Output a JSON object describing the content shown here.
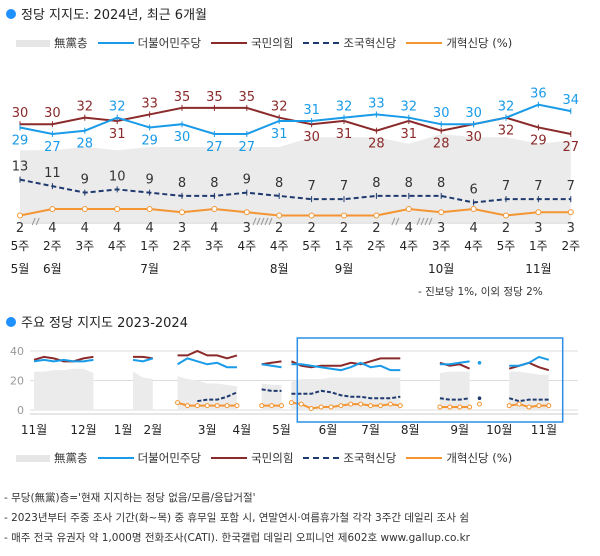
{
  "top": {
    "title": "정당 지지도: 2024년, 최근 6개월",
    "note": "- 진보당 1%, 이외 정당 2%"
  },
  "legend": {
    "nonpartisan": "無黨층",
    "dem": "더불어민주당",
    "ppp": "국민의힘",
    "rebuild": "조국혁신당",
    "reform": "개혁신당 (%)"
  },
  "bottom": {
    "title": "주요 정당 지지도 2023-2024"
  },
  "footnotes": [
    "- 무당(無黨)층='현재 지지하는 정당 없음/모름/응답거절'",
    "- 2023년부터 주중 조사 기간(화~목) 중 휴무일 포함 시, 연말연시·여름휴가철 각각 3주간 데일리 조사 쉼",
    "- 매주 전국 유권자 약 1,000명 전화조사(CATI). 한국갤럽 데일리 오피니언 제602호 www.gallup.co.kr"
  ],
  "colors": {
    "dem": "#1a9be8",
    "ppp": "#8b2a2a",
    "rebuild": "#1f3a6e",
    "reform": "#f39533",
    "nonpartisan": "#ebebeb"
  },
  "chart_data": [
    {
      "type": "line",
      "title": "정당 지지도: 2024년, 최근 6개월",
      "unit": "%",
      "weeks": [
        "5주",
        "2주",
        "3주",
        "4주",
        "1주",
        "2주",
        "3주",
        "4주",
        "4주",
        "5주",
        "1주",
        "2주",
        "4주",
        "3주",
        "4주",
        "5주",
        "1주",
        "2주"
      ],
      "months": [
        {
          "label": "5월",
          "index": 0
        },
        {
          "label": "6월",
          "index": 1
        },
        {
          "label": "7월",
          "index": 4
        },
        {
          "label": "8월",
          "index": 8
        },
        {
          "label": "9월",
          "index": 10
        },
        {
          "label": "10월",
          "index": 13
        },
        {
          "label": "11월",
          "index": 16
        }
      ],
      "series": [
        {
          "name": "더불어민주당",
          "key": "dem",
          "values": [
            29,
            27,
            28,
            32,
            29,
            30,
            27,
            27,
            31,
            31,
            32,
            33,
            32,
            30,
            30,
            32,
            36,
            34
          ]
        },
        {
          "name": "국민의힘",
          "key": "ppp",
          "values": [
            30,
            30,
            32,
            31,
            33,
            35,
            35,
            35,
            32,
            30,
            31,
            28,
            31,
            28,
            30,
            32,
            29,
            27
          ]
        },
        {
          "name": "조국혁신당",
          "key": "rebuild",
          "values": [
            13,
            11,
            9,
            10,
            9,
            8,
            8,
            9,
            8,
            7,
            7,
            8,
            8,
            8,
            6,
            7,
            7,
            7
          ]
        },
        {
          "name": "개혁신당",
          "key": "reform",
          "values": [
            2,
            4,
            4,
            4,
            4,
            3,
            4,
            3,
            2,
            2,
            2,
            2,
            4,
            3,
            4,
            2,
            3,
            3
          ]
        },
        {
          "name": "無黨층",
          "key": "nonpartisan",
          "values": [
            22,
            22,
            23,
            22,
            23,
            23,
            23,
            23,
            23,
            26,
            26,
            26,
            24,
            27,
            26,
            26,
            24,
            25
          ]
        }
      ],
      "ylim": [
        0,
        36
      ]
    },
    {
      "type": "line",
      "title": "주요 정당 지지도 2023-2024",
      "unit": "%",
      "yticks": [
        0,
        20,
        40
      ],
      "ylim": [
        0,
        45
      ],
      "months": [
        {
          "label": "11월",
          "week": 0
        },
        {
          "label": "12월",
          "week": 5
        },
        {
          "label": "1월",
          "week": 9
        },
        {
          "label": "2월",
          "week": 12
        },
        {
          "label": "3월",
          "week": 17.5
        },
        {
          "label": "4월",
          "week": 21
        },
        {
          "label": "5월",
          "week": 25
        },
        {
          "label": "6월",
          "week": 29.7
        },
        {
          "label": "7월",
          "week": 34
        },
        {
          "label": "8월",
          "week": 38
        },
        {
          "label": "9월",
          "week": 43
        },
        {
          "label": "10월",
          "week": 47
        },
        {
          "label": "11월",
          "week": 51.5
        }
      ],
      "segments": [
        {
          "start": 0,
          "dem": [
            33,
            34,
            33,
            34,
            33,
            33,
            34
          ],
          "ppp": [
            34,
            36,
            35,
            33,
            33,
            35,
            36
          ],
          "nonpartisan": [
            26,
            26,
            27,
            27,
            28,
            28,
            25
          ]
        },
        {
          "start": 10,
          "dem": [
            34,
            33,
            35
          ],
          "ppp": [
            36,
            36,
            35
          ],
          "nonpartisan": [
            26,
            22,
            21
          ]
        },
        {
          "start": 14.5,
          "dem": [
            31,
            35,
            33,
            31,
            32,
            29,
            29
          ],
          "ppp": [
            37,
            37,
            40,
            37,
            37,
            35,
            37
          ],
          "nonpartisan": [
            23,
            21,
            20,
            18,
            18,
            17,
            16
          ],
          "rebuild": [
            null,
            null,
            6,
            7,
            7,
            9,
            12
          ],
          "reform": [
            5,
            3,
            3,
            3,
            3,
            3,
            3
          ]
        },
        {
          "start": 23,
          "dem": [
            31,
            30,
            29
          ],
          "ppp": [
            31,
            32,
            33
          ],
          "nonpartisan": [
            18,
            17,
            17
          ],
          "rebuild": [
            14,
            13,
            13
          ],
          "reform": [
            3,
            3,
            3
          ]
        },
        {
          "start": 26,
          "dem": [
            31,
            31,
            30,
            29,
            28,
            27,
            29,
            32,
            29,
            30,
            27,
            27
          ],
          "ppp": [
            33,
            30,
            29,
            30,
            30,
            30,
            32,
            31,
            33,
            35,
            35,
            35
          ],
          "nonpartisan": [
            19,
            21,
            21,
            21,
            22,
            22,
            22,
            22,
            22,
            22,
            22,
            22
          ],
          "rebuild": [
            11,
            11,
            11,
            13,
            12,
            10,
            9,
            9,
            8,
            8,
            8,
            9
          ],
          "reform": [
            5,
            4,
            1,
            2,
            2,
            3,
            4,
            4,
            3,
            3,
            4,
            3
          ]
        },
        {
          "start": 41,
          "dem": [
            31,
            31,
            32,
            33
          ],
          "ppp": [
            32,
            30,
            31,
            28
          ],
          "nonpartisan": [
            25,
            26,
            26,
            26
          ],
          "rebuild": [
            8,
            7,
            7,
            8
          ],
          "reform": [
            2,
            2,
            2,
            2
          ]
        },
        {
          "start": 45,
          "dem": [
            32
          ],
          "rebuild": [
            8
          ],
          "reform": [
            4
          ]
        },
        {
          "start": 48,
          "dem": [
            30,
            30,
            32,
            36,
            34
          ],
          "ppp": [
            28,
            30,
            32,
            29,
            27
          ],
          "nonpartisan": [
            26,
            26,
            25,
            24,
            24
          ],
          "rebuild": [
            8,
            6,
            7,
            7,
            7
          ],
          "reform": [
            3,
            4,
            2,
            3,
            3
          ]
        }
      ],
      "highlight": {
        "from_week": 27,
        "to_week": 53
      }
    }
  ]
}
